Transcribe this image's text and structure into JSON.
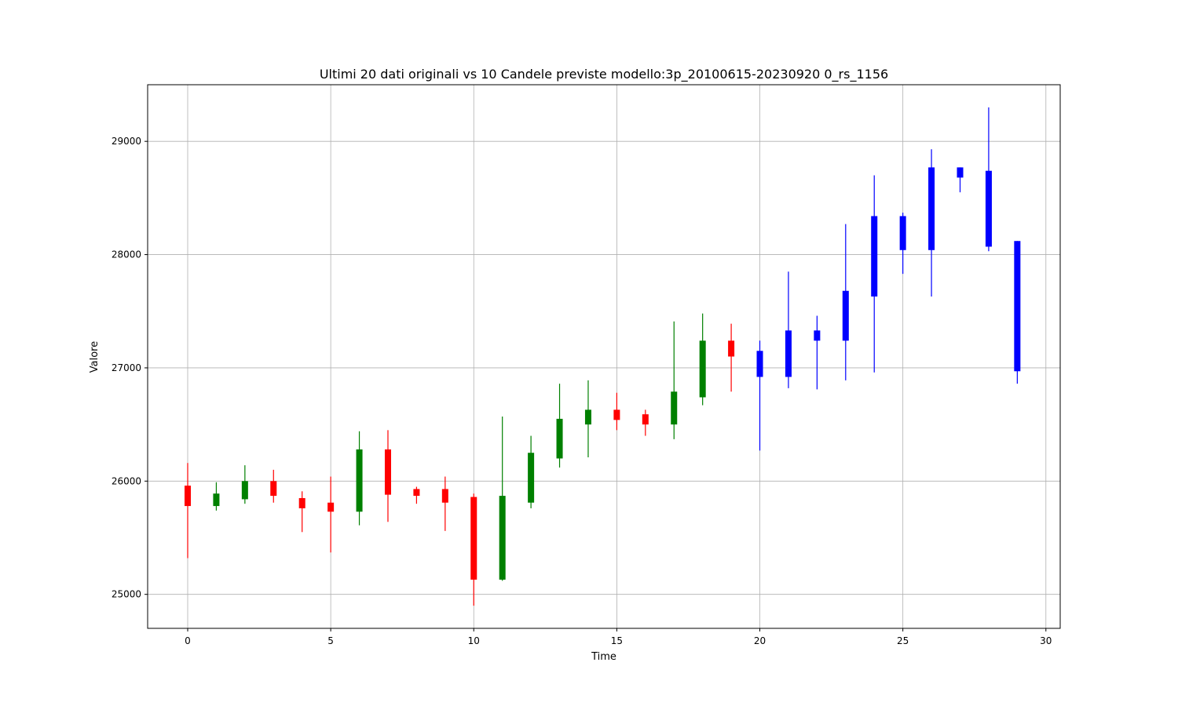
{
  "chart_data": {
    "type": "candlestick",
    "title": "Ultimi 20 dati originali vs 10 Candele previste modello:3p_20100615-20230920 0_rs_1156",
    "xlabel": "Time",
    "ylabel": "Valore",
    "xlim": [
      -1.4,
      30.5
    ],
    "ylim": [
      24700,
      29500
    ],
    "xticks": [
      0,
      5,
      10,
      15,
      20,
      25,
      30
    ],
    "yticks": [
      25000,
      26000,
      27000,
      28000,
      29000
    ],
    "grid": true,
    "colors": {
      "up": "#008000",
      "down": "#ff0000",
      "predicted": "#0000ff"
    },
    "candles": [
      {
        "x": 0,
        "open": 25960,
        "high": 26160,
        "low": 25320,
        "close": 25780,
        "kind": "original"
      },
      {
        "x": 1,
        "open": 25780,
        "high": 25990,
        "low": 25740,
        "close": 25890,
        "kind": "original"
      },
      {
        "x": 2,
        "open": 25840,
        "high": 26140,
        "low": 25800,
        "close": 26000,
        "kind": "original"
      },
      {
        "x": 3,
        "open": 26000,
        "high": 26100,
        "low": 25810,
        "close": 25870,
        "kind": "original"
      },
      {
        "x": 4,
        "open": 25850,
        "high": 25910,
        "low": 25550,
        "close": 25760,
        "kind": "original"
      },
      {
        "x": 5,
        "open": 25810,
        "high": 26040,
        "low": 25370,
        "close": 25730,
        "kind": "original"
      },
      {
        "x": 6,
        "open": 25730,
        "high": 26440,
        "low": 25610,
        "close": 26280,
        "kind": "original"
      },
      {
        "x": 7,
        "open": 26280,
        "high": 26450,
        "low": 25640,
        "close": 25880,
        "kind": "original"
      },
      {
        "x": 8,
        "open": 25930,
        "high": 25950,
        "low": 25800,
        "close": 25870,
        "kind": "original"
      },
      {
        "x": 9,
        "open": 25930,
        "high": 26040,
        "low": 25560,
        "close": 25810,
        "kind": "original"
      },
      {
        "x": 10,
        "open": 25860,
        "high": 25890,
        "low": 24900,
        "close": 25130,
        "kind": "original"
      },
      {
        "x": 11,
        "open": 25130,
        "high": 26570,
        "low": 25120,
        "close": 25870,
        "kind": "original"
      },
      {
        "x": 12,
        "open": 25810,
        "high": 26400,
        "low": 25760,
        "close": 26250,
        "kind": "original"
      },
      {
        "x": 13,
        "open": 26200,
        "high": 26860,
        "low": 26120,
        "close": 26550,
        "kind": "original"
      },
      {
        "x": 14,
        "open": 26500,
        "high": 26890,
        "low": 26210,
        "close": 26630,
        "kind": "original"
      },
      {
        "x": 15,
        "open": 26630,
        "high": 26780,
        "low": 26450,
        "close": 26540,
        "kind": "original"
      },
      {
        "x": 16,
        "open": 26590,
        "high": 26630,
        "low": 26400,
        "close": 26500,
        "kind": "original"
      },
      {
        "x": 17,
        "open": 26500,
        "high": 27410,
        "low": 26370,
        "close": 26790,
        "kind": "original"
      },
      {
        "x": 18,
        "open": 26740,
        "high": 27480,
        "low": 26670,
        "close": 27240,
        "kind": "original"
      },
      {
        "x": 19,
        "open": 27240,
        "high": 27390,
        "low": 26790,
        "close": 27100,
        "kind": "original"
      },
      {
        "x": 20,
        "open": 27150,
        "high": 27240,
        "low": 26270,
        "close": 26920,
        "kind": "predicted"
      },
      {
        "x": 21,
        "open": 26920,
        "high": 27850,
        "low": 26820,
        "close": 27330,
        "kind": "predicted"
      },
      {
        "x": 22,
        "open": 27330,
        "high": 27460,
        "low": 26810,
        "close": 27240,
        "kind": "predicted"
      },
      {
        "x": 23,
        "open": 27240,
        "high": 28270,
        "low": 26890,
        "close": 27680,
        "kind": "predicted"
      },
      {
        "x": 24,
        "open": 27630,
        "high": 28700,
        "low": 26960,
        "close": 28340,
        "kind": "predicted"
      },
      {
        "x": 25,
        "open": 28340,
        "high": 28370,
        "low": 27830,
        "close": 28040,
        "kind": "predicted"
      },
      {
        "x": 26,
        "open": 28040,
        "high": 28930,
        "low": 27630,
        "close": 28770,
        "kind": "predicted"
      },
      {
        "x": 27,
        "open": 28770,
        "high": 28770,
        "low": 28550,
        "close": 28680,
        "kind": "predicted"
      },
      {
        "x": 28,
        "open": 28070,
        "high": 29300,
        "low": 28030,
        "close": 28740,
        "kind": "predicted"
      },
      {
        "x": 29,
        "open": 28120,
        "high": 28120,
        "low": 26860,
        "close": 26970,
        "kind": "predicted"
      }
    ]
  }
}
